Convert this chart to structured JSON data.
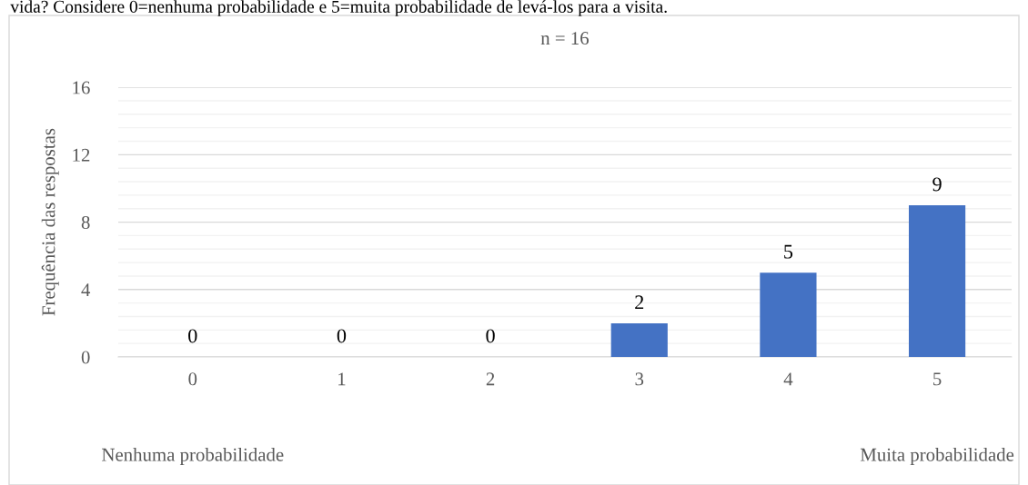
{
  "chart_data": {
    "type": "bar",
    "title": "vida? Considere 0=nenhuma probabilidade e 5=muita probabilidade de levá-los para a visita.",
    "subtitle": "n = 16",
    "ylabel": "Frequência das respostas",
    "categories": [
      "0",
      "1",
      "2",
      "3",
      "4",
      "5"
    ],
    "values": [
      0,
      0,
      0,
      2,
      5,
      9
    ],
    "color": "#4472c4",
    "data_labels": true,
    "ylim": [
      0,
      16
    ],
    "yticks": [
      0,
      {
        "value": 0.8,
        "label": null
      },
      {
        "value": 1.6,
        "label": null
      },
      {
        "value": 2.4,
        "label": null
      },
      {
        "value": 3.2,
        "label": null
      },
      4,
      {
        "value": 4.8,
        "label": null
      },
      {
        "value": 5.6,
        "label": null
      },
      {
        "value": 6.4,
        "label": null
      },
      {
        "value": 7.2,
        "label": null
      },
      8,
      {
        "value": 8.8,
        "label": null
      },
      {
        "value": 9.6,
        "label": null
      },
      {
        "value": 10.4,
        "label": null
      },
      {
        "value": 11.2,
        "label": null
      },
      12,
      {
        "value": 12.8,
        "label": null
      },
      {
        "value": 13.6,
        "label": null
      },
      {
        "value": 14.4,
        "label": null
      },
      {
        "value": 15.2,
        "label": null
      },
      16
    ],
    "grid": "y",
    "annotations": [
      "Nenhuma probabilidade",
      "Muita probabilidade"
    ]
  }
}
